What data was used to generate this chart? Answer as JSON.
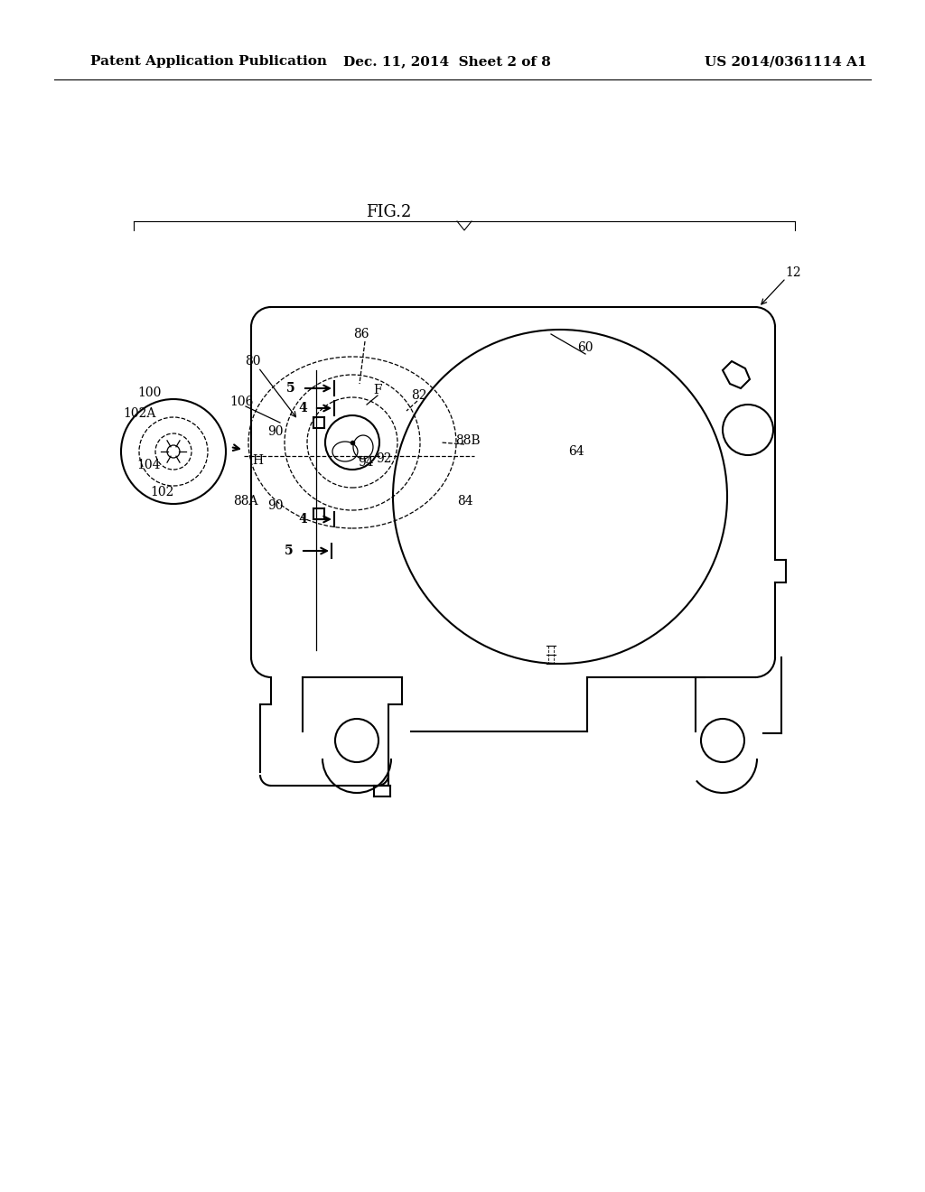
{
  "bg_color": "#ffffff",
  "header_text": "Patent Application Publication",
  "header_date": "Dec. 11, 2014  Sheet 2 of 8",
  "header_patent": "US 2014/0361114 A1",
  "fig_label": "FIG.2"
}
